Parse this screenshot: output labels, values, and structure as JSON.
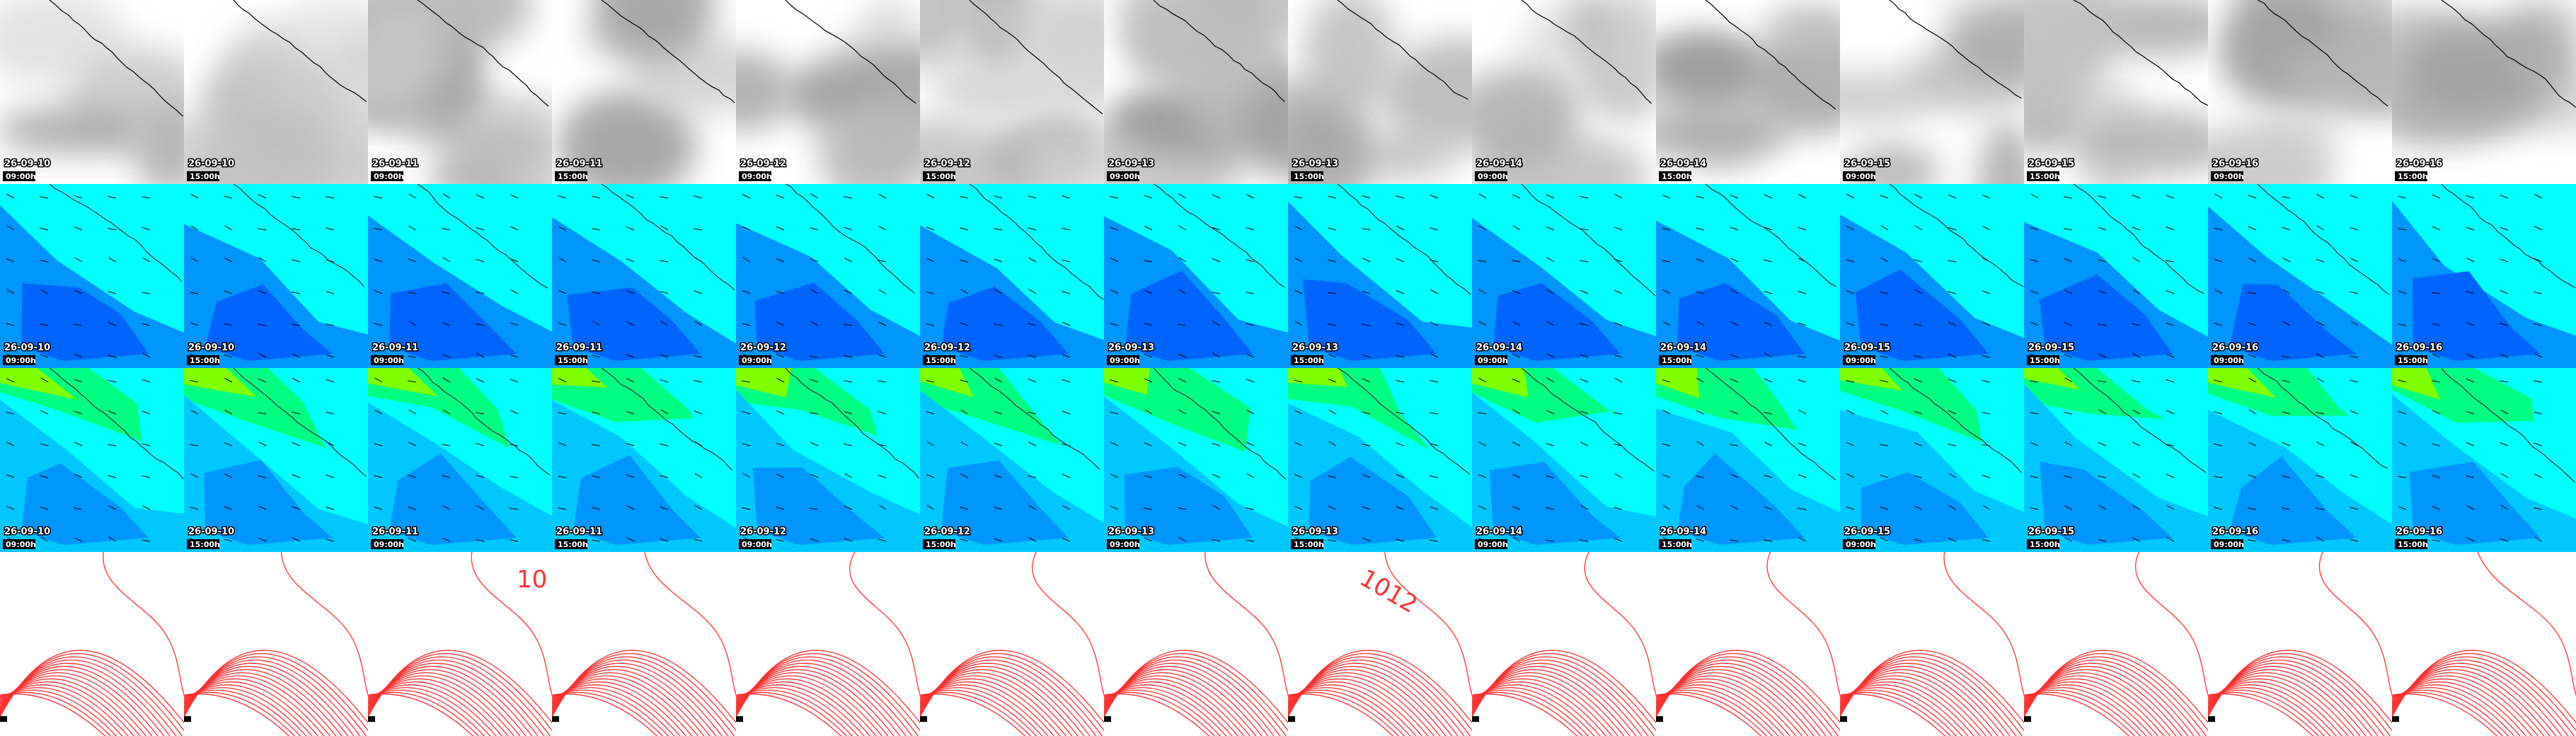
{
  "columns": [
    {
      "date": "26-09-10",
      "time": "09:00h"
    },
    {
      "date": "26-09-10",
      "time": "15:00h"
    },
    {
      "date": "26-09-11",
      "time": "09:00h",
      "contour_label": "10"
    },
    {
      "date": "26-09-11",
      "time": "15:00h"
    },
    {
      "date": "26-09-12",
      "time": "09:00h"
    },
    {
      "date": "26-09-12",
      "time": "15:00h"
    },
    {
      "date": "26-09-13",
      "time": "09:00h"
    },
    {
      "date": "26-09-13",
      "time": "15:00h",
      "contour_label": "1012"
    },
    {
      "date": "26-09-14",
      "time": "09:00h"
    },
    {
      "date": "26-09-14",
      "time": "15:00h"
    },
    {
      "date": "26-09-15",
      "time": "09:00h"
    },
    {
      "date": "26-09-15",
      "time": "15:00h"
    },
    {
      "date": "26-09-16",
      "time": "09:00h"
    },
    {
      "date": "26-09-16",
      "time": "15:00h"
    }
  ]
}
